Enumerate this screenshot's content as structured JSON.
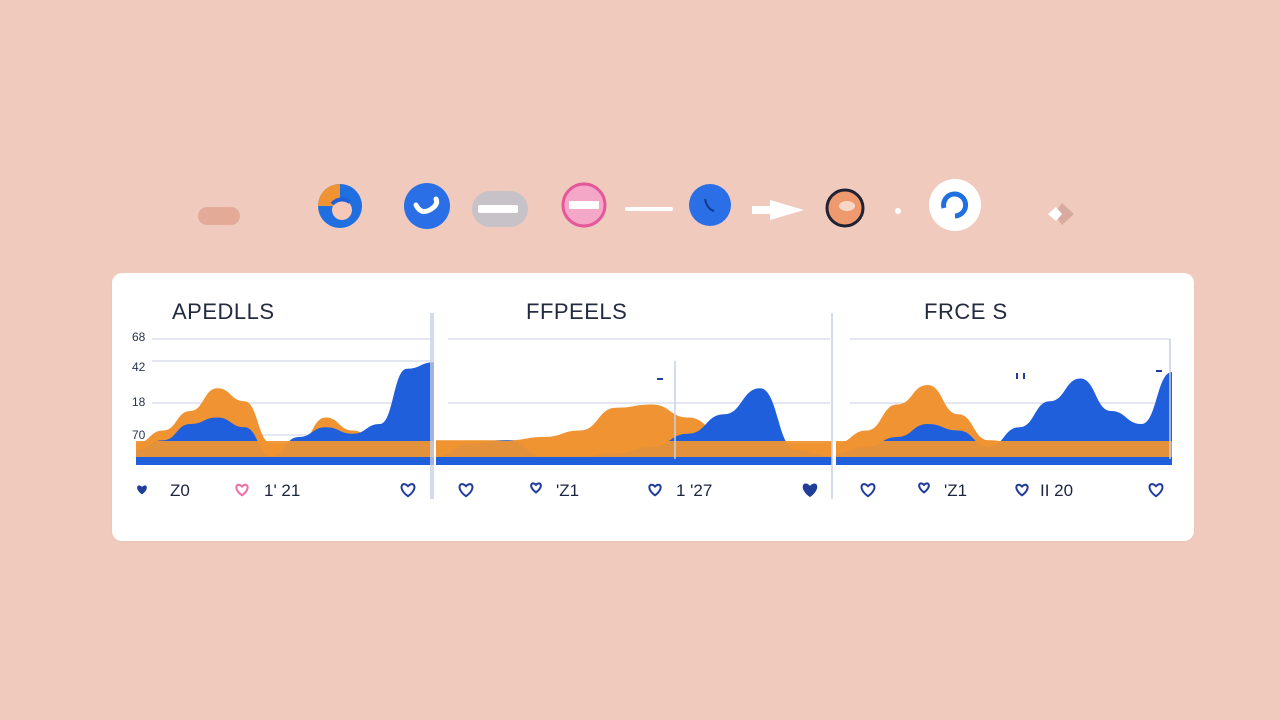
{
  "colors": {
    "background": "#f0cbbd",
    "card": "#ffffff",
    "blue": "#1f5fdc",
    "orange": "#ef9333",
    "pink": "#ee6fa3",
    "heart": "#203d9a",
    "grid": "#c9cfe6"
  },
  "toolbar": {
    "items": [
      {
        "icon": "minus-pill-icon"
      },
      {
        "icon": "profile-circle-icon"
      },
      {
        "icon": "chat-bubble-icon"
      },
      {
        "icon": "toggle-pill-icon"
      },
      {
        "icon": "no-entry-icon"
      },
      {
        "icon": "dash-line-icon"
      },
      {
        "icon": "phone-circle-icon"
      },
      {
        "icon": "arrow-right-icon"
      },
      {
        "icon": "orange-ring-icon"
      },
      {
        "icon": "dot-icon"
      },
      {
        "icon": "refresh-ring-icon"
      },
      {
        "icon": "diamond-icon"
      }
    ]
  },
  "chart_data": [
    {
      "type": "area",
      "title": "APEDLLS",
      "y_ticks": [
        "68",
        "42",
        "18",
        "70"
      ],
      "x_ticks": [
        "Z0",
        "1' 21"
      ],
      "series": [
        {
          "color": "orange",
          "values": [
            12,
            20,
            32,
            46,
            38,
            12,
            12,
            28,
            20,
            12,
            10,
            10
          ]
        },
        {
          "color": "blue",
          "values": [
            8,
            14,
            24,
            28,
            22,
            4,
            16,
            22,
            18,
            24,
            58,
            62
          ]
        }
      ]
    },
    {
      "type": "area",
      "title": "FFPEELS",
      "y_ticks": [],
      "x_ticks": [
        "'Z1",
        "1 '27"
      ],
      "series": [
        {
          "color": "orange",
          "values": [
            14,
            14,
            14,
            16,
            20,
            34,
            36,
            28,
            18,
            14,
            12,
            12
          ]
        },
        {
          "color": "blue",
          "values": [
            4,
            12,
            14,
            4,
            4,
            6,
            10,
            18,
            30,
            46,
            8,
            4
          ]
        }
      ]
    },
    {
      "type": "area",
      "title": "FRCE S",
      "y_ticks": [],
      "x_ticks": [
        "'Z1",
        "II 20"
      ],
      "series": [
        {
          "color": "orange",
          "values": [
            12,
            20,
            36,
            48,
            30,
            14,
            12,
            22,
            14,
            12,
            10,
            10
          ]
        },
        {
          "color": "blue",
          "values": [
            6,
            10,
            16,
            24,
            20,
            10,
            22,
            38,
            52,
            32,
            24,
            56
          ]
        }
      ]
    }
  ]
}
